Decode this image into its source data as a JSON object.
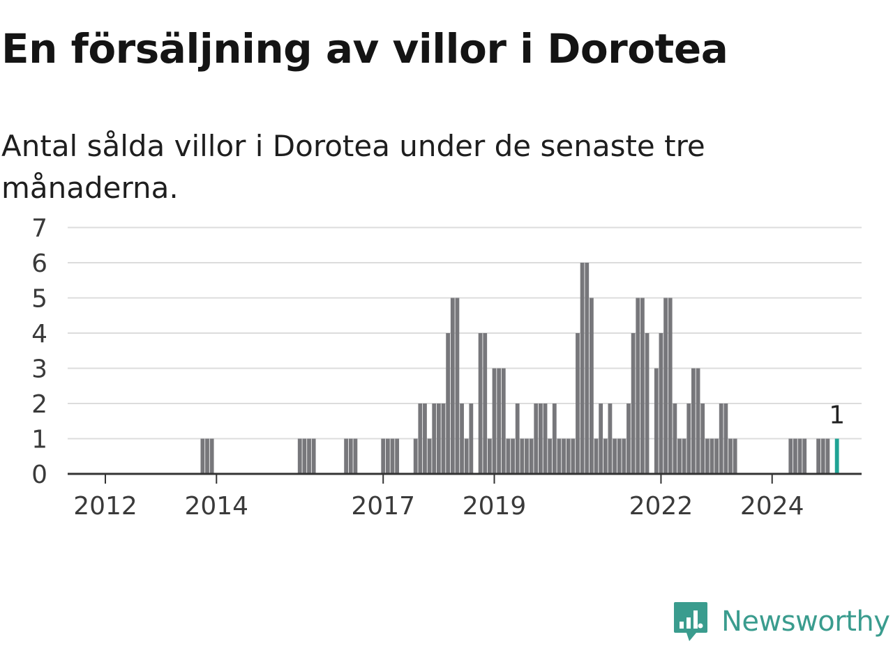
{
  "header": {
    "title": "En försäljning av villor i Dorotea",
    "subtitle": "Antal sålda villor i Dorotea under de senaste tre månaderna."
  },
  "brand": {
    "name": "Newsworthy",
    "icon": "bar-chart-speech-bubble-icon",
    "color": "#3a9c8e"
  },
  "chart_data": {
    "type": "bar",
    "title": "En försäljning av villor i Dorotea",
    "subtitle": "Antal sålda villor i Dorotea under de senaste tre månaderna.",
    "xlabel": "",
    "ylabel": "",
    "ylim": [
      0,
      7
    ],
    "yticks": [
      "0",
      "1",
      "2",
      "3",
      "4",
      "5",
      "6",
      "7"
    ],
    "xticks": [
      "2012",
      "2014",
      "2017",
      "2019",
      "2022",
      "2024"
    ],
    "grid": true,
    "colors": {
      "bar": "#77777b",
      "highlight": "#1fa394"
    },
    "highlight_label": "1",
    "x": [
      "2013-10",
      "2013-11",
      "2013-12",
      "2015-07",
      "2015-08",
      "2015-09",
      "2015-10",
      "2016-05",
      "2016-06",
      "2016-07",
      "2017-01",
      "2017-02",
      "2017-03",
      "2017-04",
      "2017-08",
      "2017-09",
      "2017-10",
      "2017-11",
      "2017-12",
      "2018-01",
      "2018-02",
      "2018-03",
      "2018-04",
      "2018-05",
      "2018-06",
      "2018-07",
      "2018-08",
      "2018-10",
      "2018-11",
      "2018-12",
      "2019-01",
      "2019-02",
      "2019-03",
      "2019-04",
      "2019-05",
      "2019-06",
      "2019-07",
      "2019-08",
      "2019-09",
      "2019-10",
      "2019-11",
      "2019-12",
      "2020-01",
      "2020-02",
      "2020-03",
      "2020-04",
      "2020-05",
      "2020-06",
      "2020-07",
      "2020-08",
      "2020-09",
      "2020-10",
      "2020-11",
      "2020-12",
      "2021-01",
      "2021-02",
      "2021-03",
      "2021-04",
      "2021-05",
      "2021-06",
      "2021-07",
      "2021-08",
      "2021-09",
      "2021-10",
      "2021-12",
      "2022-01",
      "2022-02",
      "2022-03",
      "2022-04",
      "2022-05",
      "2022-06",
      "2022-07",
      "2022-08",
      "2022-09",
      "2022-10",
      "2022-11",
      "2022-12",
      "2023-01",
      "2023-02",
      "2023-03",
      "2023-04",
      "2023-05",
      "2024-05",
      "2024-06",
      "2024-07",
      "2024-08",
      "2024-11",
      "2024-12",
      "2025-01",
      "2025-03"
    ],
    "values": [
      1,
      1,
      1,
      1,
      1,
      1,
      1,
      1,
      1,
      1,
      1,
      1,
      1,
      1,
      1,
      2,
      2,
      1,
      2,
      2,
      2,
      4,
      5,
      5,
      2,
      1,
      2,
      4,
      4,
      1,
      3,
      3,
      3,
      1,
      1,
      2,
      1,
      1,
      1,
      2,
      2,
      2,
      1,
      2,
      1,
      1,
      1,
      1,
      4,
      6,
      6,
      5,
      1,
      2,
      1,
      2,
      1,
      1,
      1,
      2,
      4,
      5,
      5,
      4,
      3,
      4,
      5,
      5,
      2,
      1,
      1,
      2,
      3,
      3,
      2,
      1,
      1,
      1,
      2,
      2,
      1,
      1,
      1,
      1,
      1,
      1,
      1,
      1,
      1,
      1
    ],
    "highlight_index": 89
  }
}
